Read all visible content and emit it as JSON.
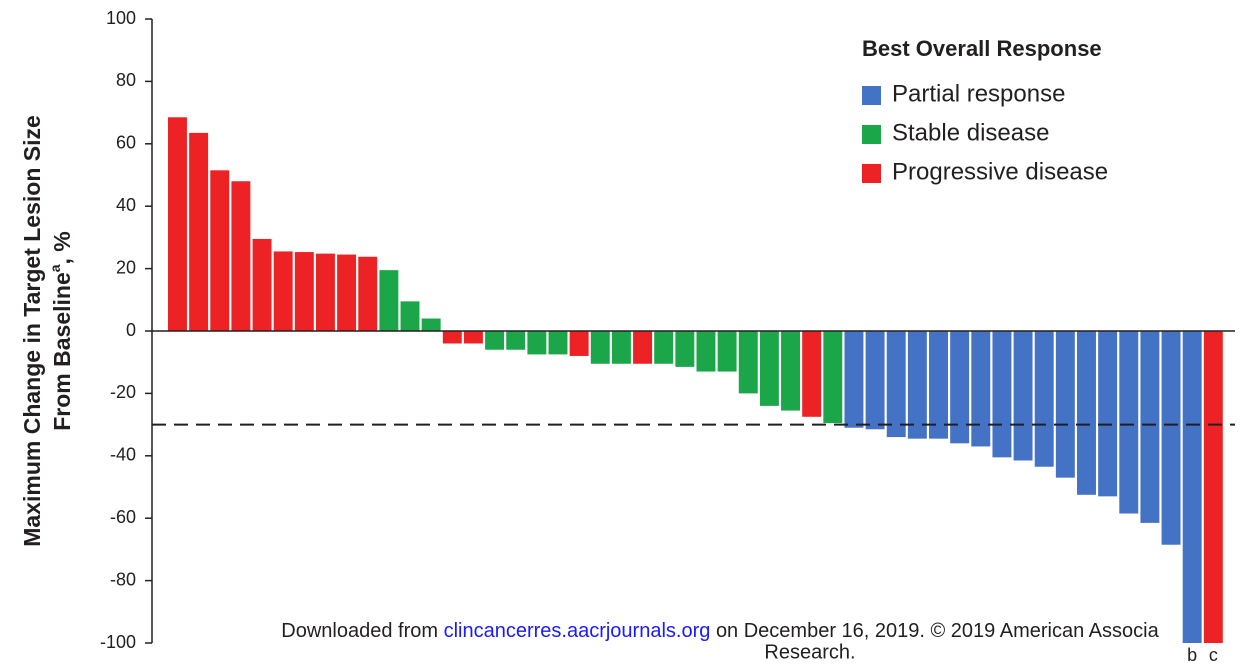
{
  "chart_data": {
    "type": "bar",
    "y_label_line1": "Maximum Change in Target Lesion Size",
    "y_label_line2": "From Baseline",
    "y_label_sup": "a",
    "y_label_suffix": ", %",
    "legend_title": "Best Overall Response",
    "legend": [
      {
        "name": "Partial response",
        "color": "#4472c4"
      },
      {
        "name": "Stable disease",
        "color": "#1ca64a"
      },
      {
        "name": "Progressive disease",
        "color": "#ed2224"
      }
    ],
    "categories": [
      null,
      null,
      null,
      null,
      null,
      null,
      null,
      null,
      null,
      null,
      null,
      null,
      null,
      null,
      null,
      null,
      null,
      null,
      null,
      null,
      null,
      null,
      null,
      null,
      null,
      null,
      null,
      null,
      null,
      null,
      null,
      null,
      null,
      null,
      null,
      null,
      null,
      null,
      null,
      null,
      null,
      null,
      null,
      null,
      null,
      null,
      null,
      null,
      "b",
      "c"
    ],
    "values": [
      68.5,
      63.5,
      51.5,
      48,
      29.5,
      25.5,
      25.3,
      24.8,
      24.5,
      23.8,
      19.5,
      9.5,
      4,
      -4,
      -4,
      -6,
      -6,
      -7.5,
      -7.5,
      -8,
      -10.5,
      -10.5,
      -10.5,
      -10.5,
      -11.5,
      -13,
      -13,
      -20,
      -24,
      -25.5,
      -27.5,
      -29.5,
      -31,
      -31.5,
      -34,
      -34.5,
      -34.5,
      -36,
      -37,
      -40.5,
      -41.5,
      -43.5,
      -47,
      -52.5,
      -53,
      -58.5,
      -61.5,
      -68.5,
      -100,
      -100
    ],
    "response": [
      2,
      2,
      2,
      2,
      2,
      2,
      2,
      2,
      2,
      2,
      1,
      1,
      1,
      2,
      2,
      1,
      1,
      1,
      1,
      2,
      1,
      1,
      2,
      1,
      1,
      1,
      1,
      1,
      1,
      1,
      2,
      1,
      0,
      0,
      0,
      0,
      0,
      0,
      0,
      0,
      0,
      0,
      0,
      0,
      0,
      0,
      0,
      0,
      0,
      2
    ],
    "reference_line": -30,
    "ylim": [
      -100,
      100
    ],
    "yticks": [
      -100,
      -80,
      -60,
      -40,
      -20,
      0,
      20,
      40,
      60,
      80,
      100
    ],
    "watermark_prefix": "Downloaded from",
    "watermark_link": "clincancerres.aacrjournals.org",
    "watermark_suffix": "on December 16, 2019. © 2019 American Associa",
    "watermark_line2": "Research."
  }
}
